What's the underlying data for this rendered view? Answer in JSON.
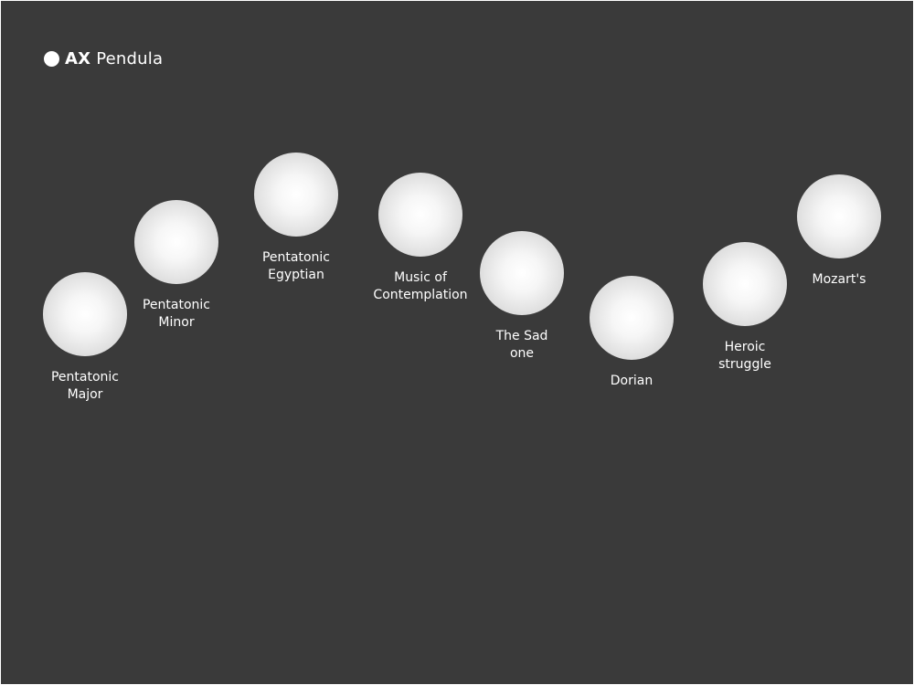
{
  "app": {
    "logo_bold": "AX",
    "logo_name": "Pendula"
  },
  "scales": [
    {
      "label": "Pentatonic\nMajor"
    },
    {
      "label": "Pentatonic\nMinor"
    },
    {
      "label": "Pentatonic\nEgyptian"
    },
    {
      "label": "Music of\nContemplation"
    },
    {
      "label": "The Sad\none"
    },
    {
      "label": "Dorian"
    },
    {
      "label": "Heroic\nstruggle"
    },
    {
      "label": "Mozart's"
    }
  ],
  "colors": {
    "background": "#3a3a3a",
    "text": "#ffffff",
    "ball_center": "#ffffff",
    "ball_edge": "#cfcfcf"
  }
}
